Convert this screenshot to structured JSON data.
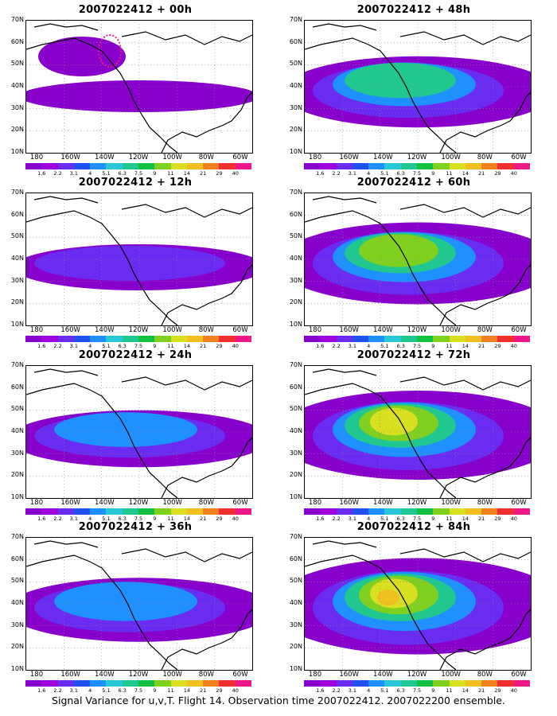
{
  "panels": [
    {
      "title": "2007022412 + 00h",
      "level": 0.0
    },
    {
      "title": "2007022412 + 48h",
      "level": 0.55
    },
    {
      "title": "2007022412 + 12h",
      "level": 0.2
    },
    {
      "title": "2007022412 + 60h",
      "level": 0.7
    },
    {
      "title": "2007022412 + 24h",
      "level": 0.35
    },
    {
      "title": "2007022412 + 72h",
      "level": 0.8
    },
    {
      "title": "2007022412 + 36h",
      "level": 0.45
    },
    {
      "title": "2007022412 + 84h",
      "level": 0.9
    }
  ],
  "yticks": [
    "70N",
    "60N",
    "50N",
    "40N",
    "30N",
    "20N",
    "10N"
  ],
  "xticks": [
    "180",
    "160W",
    "140W",
    "120W",
    "100W",
    "80W",
    "60W"
  ],
  "colorbar": {
    "labels": [
      "1.6",
      "2.2",
      "3.1",
      "4",
      "5.1",
      "6.3",
      "7.5",
      "9",
      "11",
      "14",
      "21",
      "29",
      "40"
    ],
    "colors": [
      "#8800cc",
      "#a000dd",
      "#6a2cf0",
      "#2050f0",
      "#1e90ff",
      "#28c8d8",
      "#20c890",
      "#10c040",
      "#80d020",
      "#d8e020",
      "#f0c020",
      "#f08020",
      "#f03030",
      "#f01888"
    ]
  },
  "footer": "Signal Variance for u,v,T. Flight 14. Observation time 2007022412. 2007022200 ensemble."
}
